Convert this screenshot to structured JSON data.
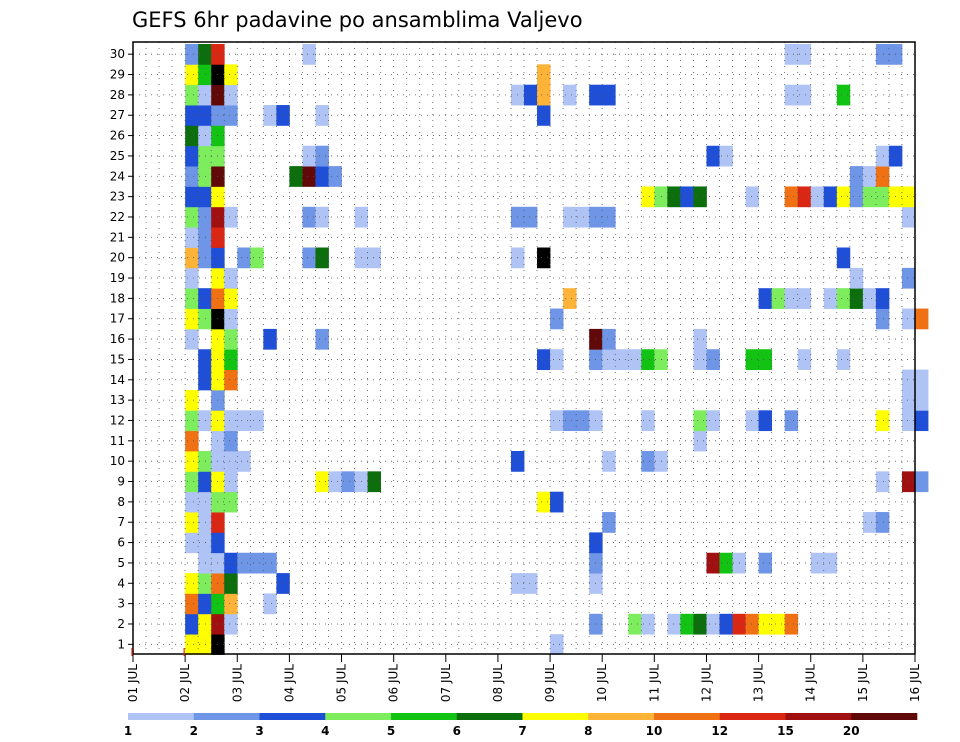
{
  "chart_data": {
    "type": "heatmap",
    "title": "GEFS 6hr padavine po ansamblima Valjevo",
    "y_members": [
      1,
      2,
      3,
      4,
      5,
      6,
      7,
      8,
      9,
      10,
      11,
      12,
      13,
      14,
      15,
      16,
      17,
      18,
      19,
      20,
      21,
      22,
      23,
      24,
      25,
      26,
      27,
      28,
      29,
      30
    ],
    "x_tick_labels": [
      "01 JUL",
      "02 JUL",
      "03 JUL",
      "04 JUL",
      "05 JUL",
      "06 JUL",
      "07 JUL",
      "08 JUL",
      "09 JUL",
      "10 JUL",
      "11 JUL",
      "12 JUL",
      "13 JUL",
      "14 JUL",
      "15 JUL",
      "16 JUL"
    ],
    "x_range_days": [
      0,
      15
    ],
    "grid": true,
    "legend_placement": "bottom",
    "legend": {
      "thresholds": [
        "1",
        "2",
        "3",
        "4",
        "5",
        "6",
        "7",
        "8",
        "10",
        "12",
        "15",
        "20"
      ],
      "colors": [
        "#afc3f5",
        "#6e95e6",
        "#1f4fd6",
        "#7ded5e",
        "#13c313",
        "#0c6e0c",
        "#ffff00",
        "#fdb338",
        "#f07114",
        "#d92714",
        "#a01010",
        "#610808"
      ]
    },
    "cells": [
      [
        1,
        1.0,
        7
      ],
      [
        1,
        1.25,
        7
      ],
      [
        1,
        1.5,
        13
      ],
      [
        1,
        8.0,
        1
      ],
      [
        2,
        1.0,
        3
      ],
      [
        2,
        1.25,
        7
      ],
      [
        2,
        1.5,
        11
      ],
      [
        2,
        1.75,
        1
      ],
      [
        2,
        8.75,
        2
      ],
      [
        2,
        9.5,
        4
      ],
      [
        2,
        9.75,
        1
      ],
      [
        2,
        10.25,
        1
      ],
      [
        2,
        10.5,
        5
      ],
      [
        2,
        10.75,
        6
      ],
      [
        2,
        11.0,
        1
      ],
      [
        2,
        11.25,
        3
      ],
      [
        2,
        11.5,
        10
      ],
      [
        2,
        11.75,
        9
      ],
      [
        2,
        12.0,
        7
      ],
      [
        2,
        12.25,
        7
      ],
      [
        2,
        12.5,
        9
      ],
      [
        3,
        1.0,
        9
      ],
      [
        3,
        1.25,
        3
      ],
      [
        3,
        1.5,
        5
      ],
      [
        3,
        1.75,
        8
      ],
      [
        3,
        2.5,
        1
      ],
      [
        4,
        1.0,
        7
      ],
      [
        4,
        1.25,
        4
      ],
      [
        4,
        1.5,
        9
      ],
      [
        4,
        1.75,
        6
      ],
      [
        4,
        2.75,
        3
      ],
      [
        4,
        7.25,
        1
      ],
      [
        4,
        7.5,
        1
      ],
      [
        4,
        8.75,
        1
      ],
      [
        5,
        1.25,
        1
      ],
      [
        5,
        1.5,
        1
      ],
      [
        5,
        1.75,
        3
      ],
      [
        5,
        2.0,
        2
      ],
      [
        5,
        2.25,
        2
      ],
      [
        5,
        2.5,
        2
      ],
      [
        5,
        8.75,
        2
      ],
      [
        5,
        11.0,
        11
      ],
      [
        5,
        11.25,
        5
      ],
      [
        5,
        11.5,
        1
      ],
      [
        5,
        12.0,
        2
      ],
      [
        5,
        13.0,
        1
      ],
      [
        5,
        13.25,
        1
      ],
      [
        6,
        1.0,
        1
      ],
      [
        6,
        1.25,
        1
      ],
      [
        6,
        1.5,
        3
      ],
      [
        6,
        8.75,
        3
      ],
      [
        7,
        1.0,
        7
      ],
      [
        7,
        1.25,
        1
      ],
      [
        7,
        1.5,
        10
      ],
      [
        7,
        9.0,
        2
      ],
      [
        7,
        14.0,
        1
      ],
      [
        7,
        14.25,
        2
      ],
      [
        8,
        1.0,
        1
      ],
      [
        8,
        1.25,
        1
      ],
      [
        8,
        1.5,
        4
      ],
      [
        8,
        1.75,
        4
      ],
      [
        8,
        7.75,
        7
      ],
      [
        8,
        8.0,
        3
      ],
      [
        9,
        1.0,
        4
      ],
      [
        9,
        1.25,
        3
      ],
      [
        9,
        1.5,
        7
      ],
      [
        9,
        1.75,
        1
      ],
      [
        9,
        3.5,
        7
      ],
      [
        9,
        3.75,
        1
      ],
      [
        9,
        4.0,
        2
      ],
      [
        9,
        4.25,
        1
      ],
      [
        9,
        4.5,
        6
      ],
      [
        9,
        14.25,
        1
      ],
      [
        9,
        14.75,
        11
      ],
      [
        9,
        15.0,
        2
      ],
      [
        10,
        1.0,
        7
      ],
      [
        10,
        1.25,
        4
      ],
      [
        10,
        1.5,
        1
      ],
      [
        10,
        1.75,
        1
      ],
      [
        10,
        2.0,
        1
      ],
      [
        10,
        7.25,
        3
      ],
      [
        10,
        9.0,
        1
      ],
      [
        10,
        9.75,
        2
      ],
      [
        10,
        10.0,
        1
      ],
      [
        11,
        1.0,
        9
      ],
      [
        11,
        1.5,
        1
      ],
      [
        11,
        1.75,
        2
      ],
      [
        11,
        10.75,
        1
      ],
      [
        12,
        1.0,
        4
      ],
      [
        12,
        1.25,
        1
      ],
      [
        12,
        1.5,
        7
      ],
      [
        12,
        1.75,
        1
      ],
      [
        12,
        2.0,
        1
      ],
      [
        12,
        2.25,
        1
      ],
      [
        12,
        8.0,
        1
      ],
      [
        12,
        8.25,
        2
      ],
      [
        12,
        8.5,
        2
      ],
      [
        12,
        8.75,
        1
      ],
      [
        12,
        9.75,
        1
      ],
      [
        12,
        10.75,
        4
      ],
      [
        12,
        11.0,
        1
      ],
      [
        12,
        11.75,
        1
      ],
      [
        12,
        12.0,
        3
      ],
      [
        12,
        12.5,
        2
      ],
      [
        12,
        14.25,
        7
      ],
      [
        12,
        14.75,
        1
      ],
      [
        12,
        15.0,
        3
      ],
      [
        13,
        1.0,
        7
      ],
      [
        13,
        1.5,
        2
      ],
      [
        13,
        14.75,
        1
      ],
      [
        13,
        15.0,
        1
      ],
      [
        14,
        1.25,
        3
      ],
      [
        14,
        1.5,
        7
      ],
      [
        14,
        1.75,
        9
      ],
      [
        14,
        14.75,
        1
      ],
      [
        14,
        15.0,
        1
      ],
      [
        15,
        1.25,
        3
      ],
      [
        15,
        1.5,
        7
      ],
      [
        15,
        1.75,
        5
      ],
      [
        15,
        7.75,
        3
      ],
      [
        15,
        8.0,
        1
      ],
      [
        15,
        8.75,
        2
      ],
      [
        15,
        9.0,
        1
      ],
      [
        15,
        9.25,
        1
      ],
      [
        15,
        9.5,
        1
      ],
      [
        15,
        9.75,
        5
      ],
      [
        15,
        10.0,
        4
      ],
      [
        15,
        10.75,
        1
      ],
      [
        15,
        11.0,
        2
      ],
      [
        15,
        11.75,
        5
      ],
      [
        15,
        12.0,
        5
      ],
      [
        15,
        12.75,
        1
      ],
      [
        15,
        13.5,
        1
      ],
      [
        16,
        1.0,
        1
      ],
      [
        16,
        1.5,
        7
      ],
      [
        16,
        1.75,
        4
      ],
      [
        16,
        2.5,
        3
      ],
      [
        16,
        3.5,
        2
      ],
      [
        16,
        8.75,
        12
      ],
      [
        16,
        9.0,
        2
      ],
      [
        16,
        10.75,
        1
      ],
      [
        17,
        1.0,
        7
      ],
      [
        17,
        1.25,
        4
      ],
      [
        17,
        1.5,
        13
      ],
      [
        17,
        1.75,
        1
      ],
      [
        17,
        8.0,
        2
      ],
      [
        17,
        14.25,
        2
      ],
      [
        17,
        14.75,
        1
      ],
      [
        17,
        15.0,
        9
      ],
      [
        18,
        1.0,
        4
      ],
      [
        18,
        1.25,
        3
      ],
      [
        18,
        1.5,
        9
      ],
      [
        18,
        1.75,
        7
      ],
      [
        18,
        8.25,
        8
      ],
      [
        18,
        12.0,
        3
      ],
      [
        18,
        12.25,
        4
      ],
      [
        18,
        12.5,
        1
      ],
      [
        18,
        12.75,
        1
      ],
      [
        18,
        13.25,
        1
      ],
      [
        18,
        13.5,
        4
      ],
      [
        18,
        13.75,
        6
      ],
      [
        18,
        14.0,
        1
      ],
      [
        18,
        14.25,
        3
      ],
      [
        19,
        1.0,
        1
      ],
      [
        19,
        1.5,
        7
      ],
      [
        19,
        1.75,
        1
      ],
      [
        19,
        13.75,
        1
      ],
      [
        19,
        14.75,
        2
      ],
      [
        20,
        1.0,
        8
      ],
      [
        20,
        1.25,
        2
      ],
      [
        20,
        1.5,
        3
      ],
      [
        20,
        2.0,
        2
      ],
      [
        20,
        2.25,
        4
      ],
      [
        20,
        3.25,
        2
      ],
      [
        20,
        3.5,
        6
      ],
      [
        20,
        4.25,
        1
      ],
      [
        20,
        4.5,
        1
      ],
      [
        20,
        7.25,
        1
      ],
      [
        20,
        7.75,
        13
      ],
      [
        20,
        13.5,
        3
      ],
      [
        21,
        1.0,
        1
      ],
      [
        21,
        1.25,
        2
      ],
      [
        21,
        1.5,
        10
      ],
      [
        22,
        1.0,
        4
      ],
      [
        22,
        1.25,
        2
      ],
      [
        22,
        1.5,
        11
      ],
      [
        22,
        1.75,
        1
      ],
      [
        22,
        3.25,
        2
      ],
      [
        22,
        3.5,
        1
      ],
      [
        22,
        4.25,
        1
      ],
      [
        22,
        7.25,
        2
      ],
      [
        22,
        7.5,
        2
      ],
      [
        22,
        8.25,
        1
      ],
      [
        22,
        8.5,
        1
      ],
      [
        22,
        8.75,
        2
      ],
      [
        22,
        9.0,
        2
      ],
      [
        22,
        14.75,
        1
      ],
      [
        23,
        1.0,
        3
      ],
      [
        23,
        1.25,
        3
      ],
      [
        23,
        1.5,
        7
      ],
      [
        23,
        9.75,
        7
      ],
      [
        23,
        10.0,
        4
      ],
      [
        23,
        10.25,
        6
      ],
      [
        23,
        10.5,
        3
      ],
      [
        23,
        10.75,
        6
      ],
      [
        23,
        11.75,
        1
      ],
      [
        23,
        12.5,
        9
      ],
      [
        23,
        12.75,
        10
      ],
      [
        23,
        13.0,
        1
      ],
      [
        23,
        13.25,
        3
      ],
      [
        23,
        13.5,
        7
      ],
      [
        23,
        13.75,
        2
      ],
      [
        23,
        14.0,
        4
      ],
      [
        23,
        14.25,
        4
      ],
      [
        23,
        14.5,
        7
      ],
      [
        23,
        14.75,
        7
      ],
      [
        24,
        1.0,
        2
      ],
      [
        24,
        1.25,
        4
      ],
      [
        24,
        1.5,
        12
      ],
      [
        24,
        3.0,
        6
      ],
      [
        24,
        3.25,
        12
      ],
      [
        24,
        3.5,
        3
      ],
      [
        24,
        3.75,
        2
      ],
      [
        24,
        13.75,
        2
      ],
      [
        24,
        14.0,
        1
      ],
      [
        24,
        14.25,
        9
      ],
      [
        25,
        1.0,
        3
      ],
      [
        25,
        1.25,
        4
      ],
      [
        25,
        1.5,
        4
      ],
      [
        25,
        3.25,
        1
      ],
      [
        25,
        3.5,
        2
      ],
      [
        25,
        11.0,
        3
      ],
      [
        25,
        11.25,
        1
      ],
      [
        25,
        14.25,
        1
      ],
      [
        25,
        14.5,
        3
      ],
      [
        26,
        1.0,
        6
      ],
      [
        26,
        1.25,
        1
      ],
      [
        26,
        1.5,
        5
      ],
      [
        27,
        1.0,
        3
      ],
      [
        27,
        1.25,
        3
      ],
      [
        27,
        1.5,
        2
      ],
      [
        27,
        1.75,
        2
      ],
      [
        27,
        2.5,
        1
      ],
      [
        27,
        2.75,
        3
      ],
      [
        27,
        3.5,
        1
      ],
      [
        27,
        7.75,
        3
      ],
      [
        28,
        1.0,
        4
      ],
      [
        28,
        1.25,
        1
      ],
      [
        28,
        1.5,
        12
      ],
      [
        28,
        1.75,
        1
      ],
      [
        28,
        7.25,
        1
      ],
      [
        28,
        7.5,
        3
      ],
      [
        28,
        7.75,
        8
      ],
      [
        28,
        8.25,
        1
      ],
      [
        28,
        8.75,
        3
      ],
      [
        28,
        9.0,
        3
      ],
      [
        28,
        12.5,
        1
      ],
      [
        28,
        12.75,
        1
      ],
      [
        28,
        13.5,
        5
      ],
      [
        29,
        1.0,
        7
      ],
      [
        29,
        1.25,
        5
      ],
      [
        29,
        1.5,
        13
      ],
      [
        29,
        1.75,
        7
      ],
      [
        29,
        7.75,
        8
      ],
      [
        30,
        1.0,
        2
      ],
      [
        30,
        1.25,
        6
      ],
      [
        30,
        1.5,
        10
      ],
      [
        30,
        3.25,
        1
      ],
      [
        30,
        12.5,
        1
      ],
      [
        30,
        12.75,
        1
      ],
      [
        30,
        14.25,
        2
      ],
      [
        30,
        14.5,
        2
      ]
    ]
  }
}
